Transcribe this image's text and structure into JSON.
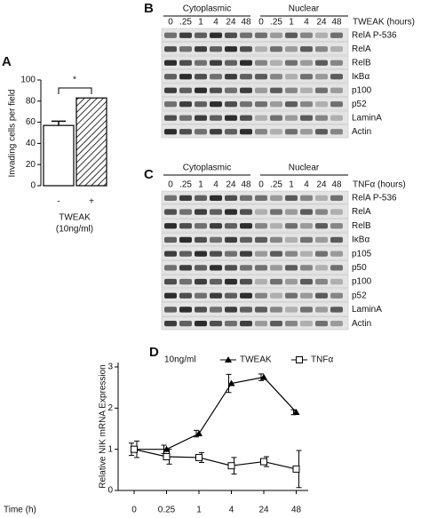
{
  "panel_letters": [
    "A",
    "B",
    "C",
    "D"
  ],
  "chart_data": [
    {
      "type": "bar",
      "categories": [
        "-",
        "+"
      ],
      "values": [
        57,
        83
      ],
      "errors": [
        4,
        null
      ],
      "ylabel": "Invading cells per field",
      "xlabel": [
        "TWEAK",
        "(10ng/ml)"
      ],
      "annotation": "*",
      "ylim": [
        0,
        100
      ],
      "yticks": [
        0,
        20,
        40,
        60,
        80,
        100
      ]
    },
    {
      "type": "line",
      "legend_title": "10ng/ml",
      "xlabel": "Time (h)",
      "categories": [
        "0",
        "0.25",
        "1",
        "4",
        "24",
        "48"
      ],
      "ylabel": "Relative NIK mRNA Expression",
      "ylim": [
        0,
        3
      ],
      "yticks": [
        0,
        1,
        2,
        3
      ],
      "series": [
        {
          "name": "TWEAK",
          "marker": "triangle",
          "values": [
            1.0,
            1.0,
            1.38,
            2.6,
            2.75,
            1.9
          ],
          "errors": [
            0.15,
            0.1,
            0.08,
            0.22,
            0.08,
            0.06
          ]
        },
        {
          "name": "TNFα",
          "marker": "square",
          "values": [
            1.0,
            0.82,
            0.8,
            0.6,
            0.7,
            0.52
          ],
          "errors": [
            0.2,
            0.18,
            0.12,
            0.2,
            0.12,
            0.45
          ]
        }
      ]
    }
  ],
  "blots": [
    {
      "groups": [
        "Cytoplasmic",
        "Nuclear"
      ],
      "times": [
        "0",
        ".25",
        "1",
        "4",
        "24",
        "48"
      ],
      "treatment": "TWEAK (hours)",
      "rows": [
        "RelA P-536",
        "RelA",
        "RelB",
        "IκBα",
        "p100",
        "p52",
        "LaminA",
        "Actin"
      ]
    },
    {
      "groups": [
        "Cytoplasmic",
        "Nuclear"
      ],
      "times": [
        "0",
        ".25",
        "1",
        "4",
        "24",
        "48"
      ],
      "treatment": "TNFα (hours)",
      "rows": [
        "RelA P-536",
        "RelA",
        "RelB",
        "IκBα",
        "p105",
        "p50",
        "p100",
        "p52",
        "LaminA",
        "Actin"
      ]
    }
  ]
}
